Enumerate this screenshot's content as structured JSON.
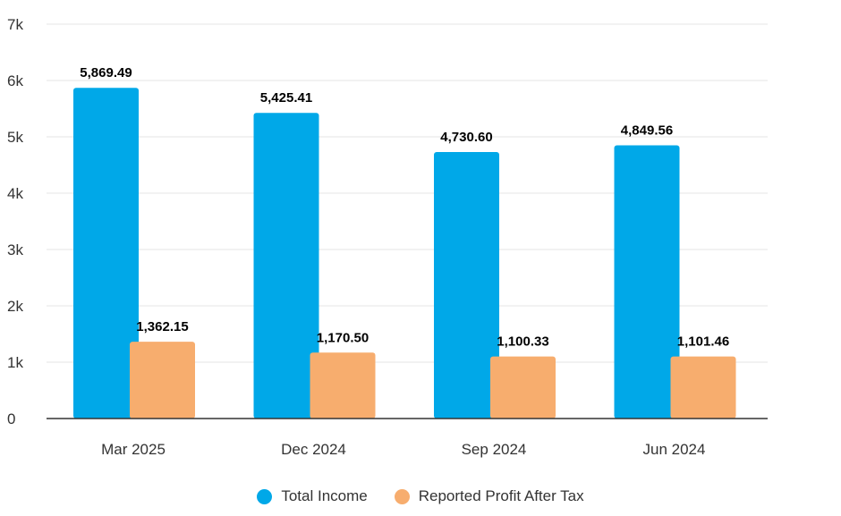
{
  "chart_data": {
    "type": "bar",
    "categories": [
      "Mar 2025",
      "Dec 2024",
      "Sep 2024",
      "Jun 2024"
    ],
    "series": [
      {
        "name": "Total Income",
        "color": "#00a8e8",
        "values": [
          5869.49,
          5425.41,
          4730.6,
          4849.56
        ],
        "labels": [
          "5,869.49",
          "5,425.41",
          "4,730.60",
          "4,849.56"
        ]
      },
      {
        "name": "Reported Profit After Tax",
        "color": "#f7ad6e",
        "values": [
          1362.15,
          1170.5,
          1100.33,
          1101.46
        ],
        "labels": [
          "1,362.15",
          "1,170.50",
          "1,100.33",
          "1,101.46"
        ]
      }
    ],
    "ylim": [
      0,
      7000
    ],
    "yticks": [
      0,
      1000,
      2000,
      3000,
      4000,
      5000,
      6000,
      7000
    ],
    "ytick_labels": [
      "0",
      "1k",
      "2k",
      "3k",
      "4k",
      "5k",
      "6k",
      "7k"
    ],
    "grid": true,
    "legend_position": "bottom"
  }
}
